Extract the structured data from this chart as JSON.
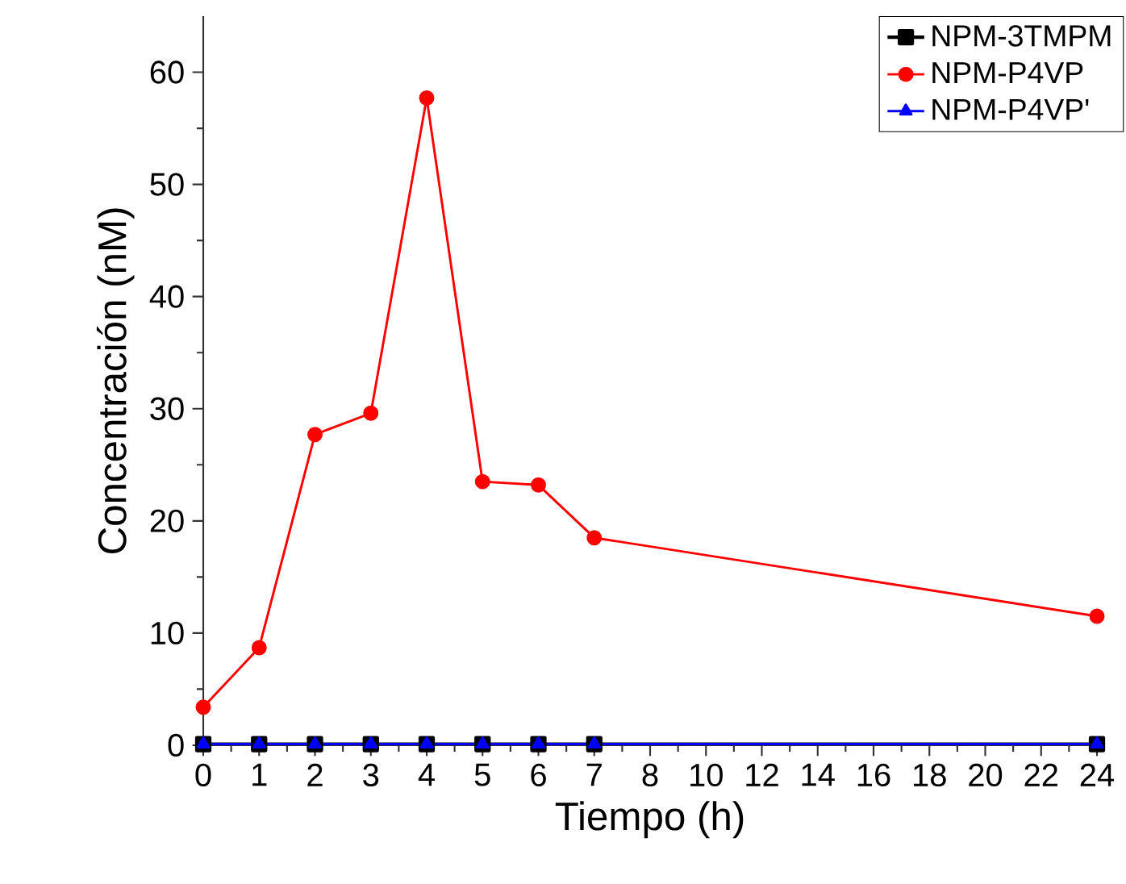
{
  "chart_data": {
    "type": "line",
    "xlabel": "Tiempo (h)",
    "ylabel": "Concentración (nM)",
    "categories": [
      "0",
      "1",
      "2",
      "3",
      "4",
      "5",
      "6",
      "7",
      "8",
      "10",
      "12",
      "14",
      "16",
      "18",
      "20",
      "22",
      "24"
    ],
    "ylim": [
      0,
      65
    ],
    "yticks": [
      0,
      10,
      20,
      30,
      40,
      50,
      60
    ],
    "legend": "top right",
    "grid": false,
    "series": [
      {
        "name": "NPM-3TMPM",
        "color": "#000000",
        "marker": "square",
        "values": [
          0.1,
          0.1,
          0.1,
          0.1,
          0.1,
          0.1,
          0.1,
          0.1,
          null,
          null,
          null,
          null,
          null,
          null,
          null,
          null,
          0.1
        ]
      },
      {
        "name": "NPM-P4VP",
        "color": "#ff0000",
        "marker": "circle",
        "values": [
          3.4,
          8.7,
          27.7,
          29.6,
          57.7,
          23.5,
          23.2,
          18.5,
          null,
          null,
          null,
          null,
          null,
          null,
          null,
          null,
          11.5
        ]
      },
      {
        "name": "NPM-P4VP'",
        "color": "#0000ff",
        "marker": "triangle",
        "values": [
          0.1,
          0.1,
          0.1,
          0.1,
          0.1,
          0.1,
          0.1,
          0.1,
          null,
          null,
          null,
          null,
          null,
          null,
          null,
          null,
          0.1
        ]
      }
    ]
  }
}
